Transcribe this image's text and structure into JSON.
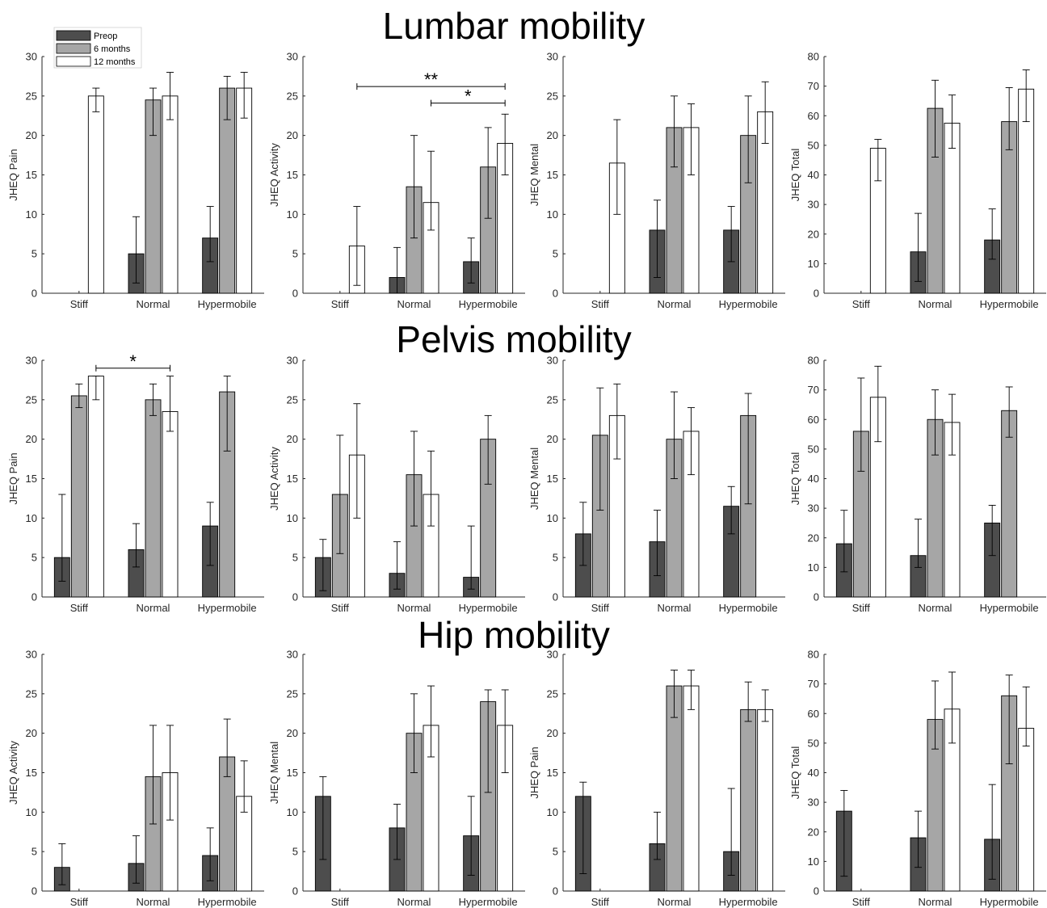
{
  "section_titles": [
    "Lumbar mobility",
    "Pelvis mobility",
    "Hip mobility"
  ],
  "legend": [
    {
      "label": "Preop",
      "color": "#4d4d4d"
    },
    {
      "label": "6 months",
      "color": "#a6a6a6"
    },
    {
      "label": "12 months",
      "color": "#ffffff"
    }
  ],
  "chart_data": [
    {
      "type": "bar",
      "section": "Lumbar mobility",
      "ylabel": "JHEQ Pain",
      "ylim": [
        0,
        30
      ],
      "yticks": [
        0,
        5,
        10,
        15,
        20,
        25,
        30
      ],
      "categories": [
        "Stiff",
        "Normal",
        "Hypermobile"
      ],
      "series": [
        {
          "name": "Preop",
          "values": [
            0,
            5,
            7
          ],
          "err_low": [
            0,
            1.3,
            4
          ],
          "err_high": [
            0,
            9.7,
            11
          ]
        },
        {
          "name": "6 months",
          "values": [
            0,
            24.5,
            26
          ],
          "err_low": [
            0,
            20,
            22
          ],
          "err_high": [
            0,
            26,
            27.5
          ]
        },
        {
          "name": "12 months",
          "values": [
            25,
            25,
            26
          ],
          "err_low": [
            23,
            22,
            22.2
          ],
          "err_high": [
            26,
            28,
            28
          ]
        }
      ],
      "significance": []
    },
    {
      "type": "bar",
      "section": "Lumbar mobility",
      "ylabel": "JHEQ Activity",
      "ylim": [
        0,
        30
      ],
      "yticks": [
        0,
        5,
        10,
        15,
        20,
        25,
        30
      ],
      "categories": [
        "Stiff",
        "Normal",
        "Hypermobile"
      ],
      "series": [
        {
          "name": "Preop",
          "values": [
            0,
            2,
            4
          ],
          "err_low": [
            0,
            0,
            1.3
          ],
          "err_high": [
            0,
            5.8,
            7
          ]
        },
        {
          "name": "6 months",
          "values": [
            0,
            13.5,
            16
          ],
          "err_low": [
            0,
            7,
            9.5
          ],
          "err_high": [
            0,
            20,
            21
          ]
        },
        {
          "name": "12 months",
          "values": [
            6,
            11.5,
            19
          ],
          "err_low": [
            1,
            8,
            15
          ],
          "err_high": [
            11,
            18,
            22.7
          ]
        }
      ],
      "significance": [
        {
          "label": "**",
          "from": [
            0,
            2
          ],
          "to": [
            2,
            2
          ],
          "y": 26.2
        },
        {
          "label": "*",
          "from": [
            1,
            2
          ],
          "to": [
            2,
            2
          ],
          "y": 24.1
        }
      ]
    },
    {
      "type": "bar",
      "section": "Lumbar mobility",
      "ylabel": "JHEQ Mental",
      "ylim": [
        0,
        30
      ],
      "yticks": [
        0,
        5,
        10,
        15,
        20,
        25,
        30
      ],
      "categories": [
        "Stiff",
        "Normal",
        "Hypermobile"
      ],
      "series": [
        {
          "name": "Preop",
          "values": [
            0,
            8,
            8
          ],
          "err_low": [
            0,
            2,
            4
          ],
          "err_high": [
            0,
            11.8,
            11
          ]
        },
        {
          "name": "6 months",
          "values": [
            0,
            21,
            20
          ],
          "err_low": [
            0,
            16,
            14
          ],
          "err_high": [
            0,
            25,
            25
          ]
        },
        {
          "name": "12 months",
          "values": [
            16.5,
            21,
            23
          ],
          "err_low": [
            10,
            15,
            19
          ],
          "err_high": [
            22,
            24,
            26.8
          ]
        }
      ],
      "significance": []
    },
    {
      "type": "bar",
      "section": "Lumbar mobility",
      "ylabel": "JHEQ Total",
      "ylim": [
        0,
        80
      ],
      "yticks": [
        0,
        10,
        20,
        30,
        40,
        50,
        60,
        70,
        80
      ],
      "categories": [
        "Stiff",
        "Normal",
        "Hypermobile"
      ],
      "series": [
        {
          "name": "Preop",
          "values": [
            0,
            14,
            18
          ],
          "err_low": [
            0,
            4,
            11.5
          ],
          "err_high": [
            0,
            27,
            28.5
          ]
        },
        {
          "name": "6 months",
          "values": [
            0,
            62.5,
            58
          ],
          "err_low": [
            0,
            46,
            48.5
          ],
          "err_high": [
            0,
            72,
            69.5
          ]
        },
        {
          "name": "12 months",
          "values": [
            49,
            57.5,
            69
          ],
          "err_low": [
            38,
            49,
            58
          ],
          "err_high": [
            52,
            67,
            75.5
          ]
        }
      ],
      "significance": []
    },
    {
      "type": "bar",
      "section": "Pelvis mobility",
      "ylabel": "JHEQ Pain",
      "ylim": [
        0,
        30
      ],
      "yticks": [
        0,
        5,
        10,
        15,
        20,
        25,
        30
      ],
      "categories": [
        "Stiff",
        "Normal",
        "Hypermobile"
      ],
      "series": [
        {
          "name": "Preop",
          "values": [
            5,
            6,
            9
          ],
          "err_low": [
            2,
            3.8,
            4
          ],
          "err_high": [
            13,
            9.3,
            12
          ]
        },
        {
          "name": "6 months",
          "values": [
            25.5,
            25,
            26
          ],
          "err_low": [
            24,
            23,
            18.5
          ],
          "err_high": [
            27,
            27,
            28
          ]
        },
        {
          "name": "12 months",
          "values": [
            28,
            23.5,
            0
          ],
          "err_low": [
            25,
            21,
            0
          ],
          "err_high": [
            28,
            28,
            0
          ]
        }
      ],
      "significance": [
        {
          "label": "*",
          "from": [
            0,
            2
          ],
          "to": [
            1,
            2
          ],
          "y": 29
        }
      ]
    },
    {
      "type": "bar",
      "section": "Pelvis mobility",
      "ylabel": "JHEQ Activity",
      "ylim": [
        0,
        30
      ],
      "yticks": [
        0,
        5,
        10,
        15,
        20,
        25,
        30
      ],
      "categories": [
        "Stiff",
        "Normal",
        "Hypermobile"
      ],
      "series": [
        {
          "name": "Preop",
          "values": [
            5,
            3,
            2.5
          ],
          "err_low": [
            0.8,
            1,
            1
          ],
          "err_high": [
            7.3,
            7,
            9
          ]
        },
        {
          "name": "6 months",
          "values": [
            13,
            15.5,
            20
          ],
          "err_low": [
            5.5,
            9,
            14.3
          ],
          "err_high": [
            20.5,
            21,
            23
          ]
        },
        {
          "name": "12 months",
          "values": [
            18,
            13,
            0
          ],
          "err_low": [
            10,
            9,
            0
          ],
          "err_high": [
            24.5,
            18.5,
            0
          ]
        }
      ],
      "significance": []
    },
    {
      "type": "bar",
      "section": "Pelvis mobility",
      "ylabel": "JHEQ Mental",
      "ylim": [
        0,
        30
      ],
      "yticks": [
        0,
        5,
        10,
        15,
        20,
        25,
        30
      ],
      "categories": [
        "Stiff",
        "Normal",
        "Hypermobile"
      ],
      "series": [
        {
          "name": "Preop",
          "values": [
            8,
            7,
            11.5
          ],
          "err_low": [
            4,
            2.7,
            8
          ],
          "err_high": [
            12,
            11,
            14
          ]
        },
        {
          "name": "6 months",
          "values": [
            20.5,
            20,
            23
          ],
          "err_low": [
            11,
            15,
            11.8
          ],
          "err_high": [
            26.5,
            26,
            25.8
          ]
        },
        {
          "name": "12 months",
          "values": [
            23,
            21,
            0
          ],
          "err_low": [
            17.5,
            15.5,
            0
          ],
          "err_high": [
            27,
            24,
            0
          ]
        }
      ],
      "significance": []
    },
    {
      "type": "bar",
      "section": "Pelvis mobility",
      "ylabel": "JHEQ Total",
      "ylim": [
        0,
        80
      ],
      "yticks": [
        0,
        10,
        20,
        30,
        40,
        50,
        60,
        70,
        80
      ],
      "categories": [
        "Stiff",
        "Normal",
        "Hypermobile"
      ],
      "series": [
        {
          "name": "Preop",
          "values": [
            18,
            14,
            25
          ],
          "err_low": [
            8.5,
            10,
            14
          ],
          "err_high": [
            29.3,
            26.3,
            31
          ]
        },
        {
          "name": "6 months",
          "values": [
            56,
            60,
            63
          ],
          "err_low": [
            42.5,
            48,
            54
          ],
          "err_high": [
            74,
            70,
            71
          ]
        },
        {
          "name": "12 months",
          "values": [
            67.5,
            59,
            0
          ],
          "err_low": [
            52.5,
            48,
            0
          ],
          "err_high": [
            78,
            68.5,
            0
          ]
        }
      ],
      "significance": []
    },
    {
      "type": "bar",
      "section": "Hip mobility",
      "ylabel": "JHEQ Activity",
      "ylim": [
        0,
        30
      ],
      "yticks": [
        0,
        5,
        10,
        15,
        20,
        25,
        30
      ],
      "categories": [
        "Stiff",
        "Normal",
        "Hypermobile"
      ],
      "series": [
        {
          "name": "Preop",
          "values": [
            3,
            3.5,
            4.5
          ],
          "err_low": [
            0.8,
            1,
            1.3
          ],
          "err_high": [
            6,
            7,
            8
          ]
        },
        {
          "name": "6 months",
          "values": [
            0,
            14.5,
            17
          ],
          "err_low": [
            0,
            8.5,
            14.5
          ],
          "err_high": [
            0,
            21,
            21.8
          ]
        },
        {
          "name": "12 months",
          "values": [
            0,
            15,
            12
          ],
          "err_low": [
            0,
            9,
            10
          ],
          "err_high": [
            0,
            21,
            16.5
          ]
        }
      ],
      "significance": []
    },
    {
      "type": "bar",
      "section": "Hip mobility",
      "ylabel": "JHEQ Mental",
      "ylim": [
        0,
        30
      ],
      "yticks": [
        0,
        5,
        10,
        15,
        20,
        25,
        30
      ],
      "categories": [
        "Stiff",
        "Normal",
        "Hypermobile"
      ],
      "series": [
        {
          "name": "Preop",
          "values": [
            12,
            8,
            7
          ],
          "err_low": [
            4,
            4,
            2
          ],
          "err_high": [
            14.5,
            11,
            12
          ]
        },
        {
          "name": "6 months",
          "values": [
            0,
            20,
            24
          ],
          "err_low": [
            0,
            15,
            12.5
          ],
          "err_high": [
            0,
            25,
            25.5
          ]
        },
        {
          "name": "12 months",
          "values": [
            0,
            21,
            21
          ],
          "err_low": [
            0,
            17,
            15
          ],
          "err_high": [
            0,
            26,
            25.5
          ]
        }
      ],
      "significance": []
    },
    {
      "type": "bar",
      "section": "Hip mobility",
      "ylabel": "JHEQ Pain",
      "ylim": [
        0,
        30
      ],
      "yticks": [
        0,
        5,
        10,
        15,
        20,
        25,
        30
      ],
      "categories": [
        "Stiff",
        "Normal",
        "Hypermobile"
      ],
      "series": [
        {
          "name": "Preop",
          "values": [
            12,
            6,
            5
          ],
          "err_low": [
            2.2,
            4,
            2
          ],
          "err_high": [
            13.8,
            10,
            13
          ]
        },
        {
          "name": "6 months",
          "values": [
            0,
            26,
            23
          ],
          "err_low": [
            0,
            22,
            21.5
          ],
          "err_high": [
            0,
            28,
            26.5
          ]
        },
        {
          "name": "12 months",
          "values": [
            0,
            26,
            23
          ],
          "err_low": [
            0,
            23,
            21.5
          ],
          "err_high": [
            0,
            28,
            25.5
          ]
        }
      ],
      "significance": []
    },
    {
      "type": "bar",
      "section": "Hip mobility",
      "ylabel": "JHEQ Total",
      "ylim": [
        0,
        80
      ],
      "yticks": [
        0,
        10,
        20,
        30,
        40,
        50,
        60,
        70,
        80
      ],
      "categories": [
        "Stiff",
        "Normal",
        "Hypermobile"
      ],
      "series": [
        {
          "name": "Preop",
          "values": [
            27,
            18,
            17.5
          ],
          "err_low": [
            5,
            8,
            4
          ],
          "err_high": [
            34,
            27,
            36
          ]
        },
        {
          "name": "6 months",
          "values": [
            0,
            58,
            66
          ],
          "err_low": [
            0,
            48,
            43
          ],
          "err_high": [
            0,
            71,
            73
          ]
        },
        {
          "name": "12 months",
          "values": [
            0,
            61.5,
            55
          ],
          "err_low": [
            0,
            50,
            49
          ],
          "err_high": [
            0,
            74,
            69
          ]
        }
      ],
      "significance": []
    }
  ]
}
